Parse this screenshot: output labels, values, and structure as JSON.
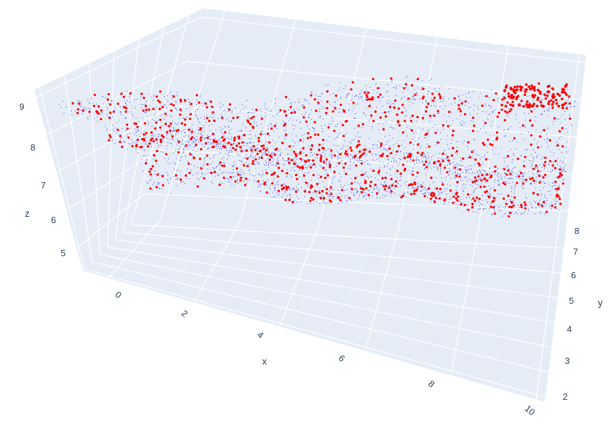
{
  "chart_data": {
    "type": "scatter3d",
    "title": "",
    "axes": {
      "x": {
        "title": "x",
        "range": [
          -0.6,
          10.2
        ],
        "ticks": [
          0,
          2,
          4,
          6,
          8,
          10
        ],
        "tick_labels": [
          "0",
          "2",
          "4",
          "6",
          "8",
          "10"
        ]
      },
      "y": {
        "title": "y",
        "range": [
          1.8,
          8.6
        ],
        "ticks": [
          2,
          3,
          4,
          5,
          6,
          7,
          8
        ],
        "tick_labels": [
          "2",
          "3",
          "4",
          "5",
          "6",
          "7",
          "8"
        ]
      },
      "z": {
        "title": "z",
        "range": [
          4.4,
          9.2
        ],
        "ticks": [
          5,
          6,
          7,
          8,
          9
        ],
        "tick_labels": [
          "5",
          "6",
          "7",
          "8",
          "9"
        ]
      }
    },
    "grid": true,
    "legend": "none",
    "colors": {
      "scene_background": "#e5ecf6",
      "gridline": "#ffffff",
      "tick_text": "#2a3f5f",
      "series_dense": "#0000ff",
      "series_sparse": "#ff0000"
    },
    "series": [
      {
        "marker_color": "#0000ff",
        "marker_size": "tiny",
        "approx_point_count": 6000,
        "description_of_distribution": "dense cloud covering the whole x-y footprint on a slanted surface, z rising from about 5 at high y to about 8.8 at low y",
        "sample_points": [
          {
            "x": 0.2,
            "y": 7.8,
            "z": 5.2
          },
          {
            "x": 1.5,
            "y": 6.5,
            "z": 6.0
          },
          {
            "x": 3.0,
            "y": 5.0,
            "z": 7.0
          },
          {
            "x": 5.0,
            "y": 4.0,
            "z": 7.6
          },
          {
            "x": 7.0,
            "y": 3.0,
            "z": 8.2
          },
          {
            "x": 9.0,
            "y": 2.5,
            "z": 8.6
          },
          {
            "x": 9.5,
            "y": 6.0,
            "z": 6.3
          },
          {
            "x": 4.0,
            "y": 7.5,
            "z": 5.3
          },
          {
            "x": 8.0,
            "y": 5.0,
            "z": 7.0
          }
        ]
      },
      {
        "marker_color": "#ff0000",
        "marker_size": "small",
        "approx_point_count": 900,
        "description_of_distribution": "sparser sample over the same surface with a dense clump near x≈9, y≈2.3, z≈8.8",
        "sample_points": [
          {
            "x": 9.2,
            "y": 2.3,
            "z": 8.8
          },
          {
            "x": 9.5,
            "y": 2.5,
            "z": 8.7
          },
          {
            "x": 8.8,
            "y": 2.6,
            "z": 8.6
          },
          {
            "x": 1.0,
            "y": 7.0,
            "z": 5.6
          },
          {
            "x": 5.5,
            "y": 4.5,
            "z": 7.3
          },
          {
            "x": 3.0,
            "y": 6.0,
            "z": 6.3
          }
        ]
      }
    ]
  }
}
